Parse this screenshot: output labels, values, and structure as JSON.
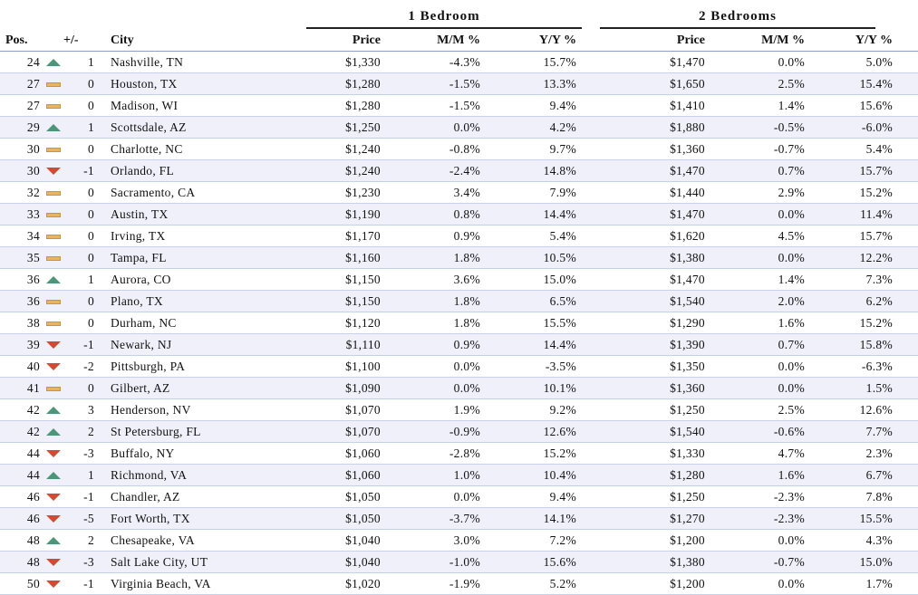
{
  "groups": {
    "one_bed": "1 Bedroom",
    "two_bed": "2 Bedrooms"
  },
  "headers": {
    "pos": "Pos.",
    "change": "+/-",
    "city": "City",
    "price1": "Price",
    "mm1": "M/M %",
    "yy1": "Y/Y %",
    "price2": "Price",
    "mm2": "M/M %",
    "yy2": "Y/Y %"
  },
  "colors": {
    "up": "#4e9478",
    "down": "#d24a35",
    "flat": "#e8b464"
  },
  "rows": [
    {
      "pos": "24",
      "trend": "up",
      "chg": "1",
      "city": "Nashville, TN",
      "p1": "$1,330",
      "m1": "-4.3%",
      "y1": "15.7%",
      "p2": "$1,470",
      "m2": "0.0%",
      "y2": "5.0%"
    },
    {
      "pos": "27",
      "trend": "flat",
      "chg": "0",
      "city": "Houston, TX",
      "p1": "$1,280",
      "m1": "-1.5%",
      "y1": "13.3%",
      "p2": "$1,650",
      "m2": "2.5%",
      "y2": "15.4%"
    },
    {
      "pos": "27",
      "trend": "flat",
      "chg": "0",
      "city": "Madison, WI",
      "p1": "$1,280",
      "m1": "-1.5%",
      "y1": "9.4%",
      "p2": "$1,410",
      "m2": "1.4%",
      "y2": "15.6%"
    },
    {
      "pos": "29",
      "trend": "up",
      "chg": "1",
      "city": "Scottsdale, AZ",
      "p1": "$1,250",
      "m1": "0.0%",
      "y1": "4.2%",
      "p2": "$1,880",
      "m2": "-0.5%",
      "y2": "-6.0%"
    },
    {
      "pos": "30",
      "trend": "flat",
      "chg": "0",
      "city": "Charlotte, NC",
      "p1": "$1,240",
      "m1": "-0.8%",
      "y1": "9.7%",
      "p2": "$1,360",
      "m2": "-0.7%",
      "y2": "5.4%"
    },
    {
      "pos": "30",
      "trend": "down",
      "chg": "-1",
      "city": "Orlando, FL",
      "p1": "$1,240",
      "m1": "-2.4%",
      "y1": "14.8%",
      "p2": "$1,470",
      "m2": "0.7%",
      "y2": "15.7%"
    },
    {
      "pos": "32",
      "trend": "flat",
      "chg": "0",
      "city": "Sacramento, CA",
      "p1": "$1,230",
      "m1": "3.4%",
      "y1": "7.9%",
      "p2": "$1,440",
      "m2": "2.9%",
      "y2": "15.2%"
    },
    {
      "pos": "33",
      "trend": "flat",
      "chg": "0",
      "city": "Austin, TX",
      "p1": "$1,190",
      "m1": "0.8%",
      "y1": "14.4%",
      "p2": "$1,470",
      "m2": "0.0%",
      "y2": "11.4%"
    },
    {
      "pos": "34",
      "trend": "flat",
      "chg": "0",
      "city": "Irving, TX",
      "p1": "$1,170",
      "m1": "0.9%",
      "y1": "5.4%",
      "p2": "$1,620",
      "m2": "4.5%",
      "y2": "15.7%"
    },
    {
      "pos": "35",
      "trend": "flat",
      "chg": "0",
      "city": "Tampa, FL",
      "p1": "$1,160",
      "m1": "1.8%",
      "y1": "10.5%",
      "p2": "$1,380",
      "m2": "0.0%",
      "y2": "12.2%"
    },
    {
      "pos": "36",
      "trend": "up",
      "chg": "1",
      "city": "Aurora, CO",
      "p1": "$1,150",
      "m1": "3.6%",
      "y1": "15.0%",
      "p2": "$1,470",
      "m2": "1.4%",
      "y2": "7.3%"
    },
    {
      "pos": "36",
      "trend": "flat",
      "chg": "0",
      "city": "Plano, TX",
      "p1": "$1,150",
      "m1": "1.8%",
      "y1": "6.5%",
      "p2": "$1,540",
      "m2": "2.0%",
      "y2": "6.2%"
    },
    {
      "pos": "38",
      "trend": "flat",
      "chg": "0",
      "city": "Durham, NC",
      "p1": "$1,120",
      "m1": "1.8%",
      "y1": "15.5%",
      "p2": "$1,290",
      "m2": "1.6%",
      "y2": "15.2%"
    },
    {
      "pos": "39",
      "trend": "down",
      "chg": "-1",
      "city": "Newark, NJ",
      "p1": "$1,110",
      "m1": "0.9%",
      "y1": "14.4%",
      "p2": "$1,390",
      "m2": "0.7%",
      "y2": "15.8%"
    },
    {
      "pos": "40",
      "trend": "down",
      "chg": "-2",
      "city": "Pittsburgh, PA",
      "p1": "$1,100",
      "m1": "0.0%",
      "y1": "-3.5%",
      "p2": "$1,350",
      "m2": "0.0%",
      "y2": "-6.3%"
    },
    {
      "pos": "41",
      "trend": "flat",
      "chg": "0",
      "city": "Gilbert, AZ",
      "p1": "$1,090",
      "m1": "0.0%",
      "y1": "10.1%",
      "p2": "$1,360",
      "m2": "0.0%",
      "y2": "1.5%"
    },
    {
      "pos": "42",
      "trend": "up",
      "chg": "3",
      "city": "Henderson, NV",
      "p1": "$1,070",
      "m1": "1.9%",
      "y1": "9.2%",
      "p2": "$1,250",
      "m2": "2.5%",
      "y2": "12.6%"
    },
    {
      "pos": "42",
      "trend": "up",
      "chg": "2",
      "city": "St Petersburg, FL",
      "p1": "$1,070",
      "m1": "-0.9%",
      "y1": "12.6%",
      "p2": "$1,540",
      "m2": "-0.6%",
      "y2": "7.7%"
    },
    {
      "pos": "44",
      "trend": "down",
      "chg": "-3",
      "city": "Buffalo, NY",
      "p1": "$1,060",
      "m1": "-2.8%",
      "y1": "15.2%",
      "p2": "$1,330",
      "m2": "4.7%",
      "y2": "2.3%"
    },
    {
      "pos": "44",
      "trend": "up",
      "chg": "1",
      "city": "Richmond, VA",
      "p1": "$1,060",
      "m1": "1.0%",
      "y1": "10.4%",
      "p2": "$1,280",
      "m2": "1.6%",
      "y2": "6.7%"
    },
    {
      "pos": "46",
      "trend": "down",
      "chg": "-1",
      "city": "Chandler, AZ",
      "p1": "$1,050",
      "m1": "0.0%",
      "y1": "9.4%",
      "p2": "$1,250",
      "m2": "-2.3%",
      "y2": "7.8%"
    },
    {
      "pos": "46",
      "trend": "down",
      "chg": "-5",
      "city": "Fort Worth, TX",
      "p1": "$1,050",
      "m1": "-3.7%",
      "y1": "14.1%",
      "p2": "$1,270",
      "m2": "-2.3%",
      "y2": "15.5%"
    },
    {
      "pos": "48",
      "trend": "up",
      "chg": "2",
      "city": "Chesapeake, VA",
      "p1": "$1,040",
      "m1": "3.0%",
      "y1": "7.2%",
      "p2": "$1,200",
      "m2": "0.0%",
      "y2": "4.3%"
    },
    {
      "pos": "48",
      "trend": "down",
      "chg": "-3",
      "city": "Salt Lake City, UT",
      "p1": "$1,040",
      "m1": "-1.0%",
      "y1": "15.6%",
      "p2": "$1,380",
      "m2": "-0.7%",
      "y2": "15.0%"
    },
    {
      "pos": "50",
      "trend": "down",
      "chg": "-1",
      "city": "Virginia Beach, VA",
      "p1": "$1,020",
      "m1": "-1.9%",
      "y1": "5.2%",
      "p2": "$1,200",
      "m2": "0.0%",
      "y2": "1.7%"
    }
  ]
}
